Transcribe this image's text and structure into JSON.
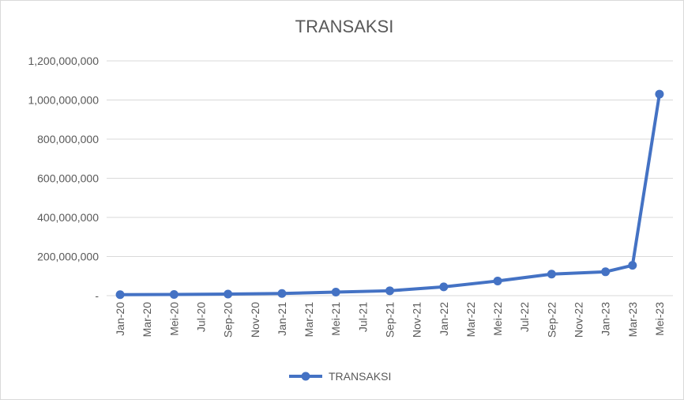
{
  "chart_data": {
    "type": "line",
    "title": "TRANSAKSI",
    "xlabel": "",
    "ylabel": "",
    "x_tick_labels": [
      "Jan-20",
      "Mar-20",
      "Mei-20",
      "Jul-20",
      "Sep-20",
      "Nov-20",
      "Jan-21",
      "Mar-21",
      "Mei-21",
      "Jul-21",
      "Sep-21",
      "Nov-21",
      "Jan-22",
      "Mar-22",
      "Mei-22",
      "Jul-22",
      "Sep-22",
      "Nov-22",
      "Jan-23",
      "Mar-23",
      "Mei-23"
    ],
    "y_tick_labels": [
      "-",
      "200,000,000",
      "400,000,000",
      "600,000,000",
      "800,000,000",
      "1,000,000,000",
      "1,200,000,000"
    ],
    "y_ticks": [
      0,
      200000000,
      400000000,
      600000000,
      800000000,
      1000000000,
      1200000000
    ],
    "ylim": [
      0,
      1200000000
    ],
    "x_range": [
      "Jan-20",
      "Mei-23"
    ],
    "series": [
      {
        "name": "TRANSAKSI",
        "color": "#4472c4",
        "points": [
          {
            "x": "Jan-20",
            "y": 5000000
          },
          {
            "x": "Mei-20",
            "y": 6000000
          },
          {
            "x": "Sep-20",
            "y": 8000000
          },
          {
            "x": "Jan-21",
            "y": 11000000
          },
          {
            "x": "Mei-21",
            "y": 18000000
          },
          {
            "x": "Sep-21",
            "y": 25000000
          },
          {
            "x": "Jan-22",
            "y": 45000000
          },
          {
            "x": "Mei-22",
            "y": 75000000
          },
          {
            "x": "Sep-22",
            "y": 110000000
          },
          {
            "x": "Jan-23",
            "y": 122000000
          },
          {
            "x": "Mar-23",
            "y": 155000000
          },
          {
            "x": "Mei-23",
            "y": 1030000000
          }
        ]
      }
    ],
    "grid": "horizontal",
    "legend_position": "bottom",
    "colors": {
      "line": "#4472c4",
      "grid": "#d9d9d9",
      "text": "#595959"
    }
  }
}
